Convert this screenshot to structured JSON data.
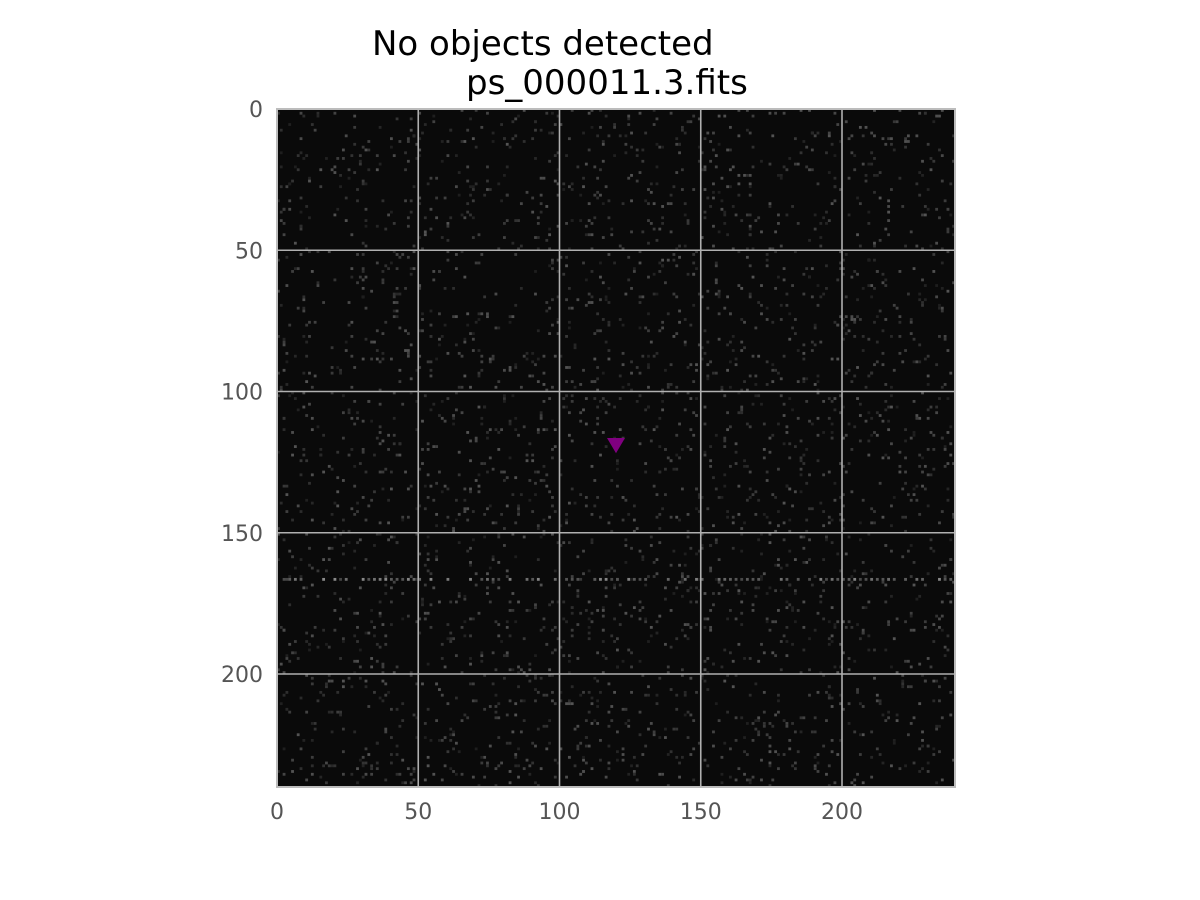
{
  "chart_data": {
    "type": "heatmap",
    "title_line1": "No objects detected",
    "title_line2": "ps_000011.3.fits",
    "xlabel": "",
    "ylabel": "",
    "xlim": [
      0,
      240
    ],
    "ylim": [
      240,
      0
    ],
    "x_ticks": [
      0,
      50,
      100,
      150,
      200
    ],
    "y_ticks": [
      0,
      50,
      100,
      150,
      200
    ],
    "grid": true,
    "colormap": "gray",
    "image_background": "#0a0a0a",
    "grid_color": "#b0b0b0",
    "frame_color": "#bcbcbc",
    "marker": {
      "shape": "triangle-down",
      "x": 120,
      "y": 119,
      "color": "#800080"
    }
  }
}
